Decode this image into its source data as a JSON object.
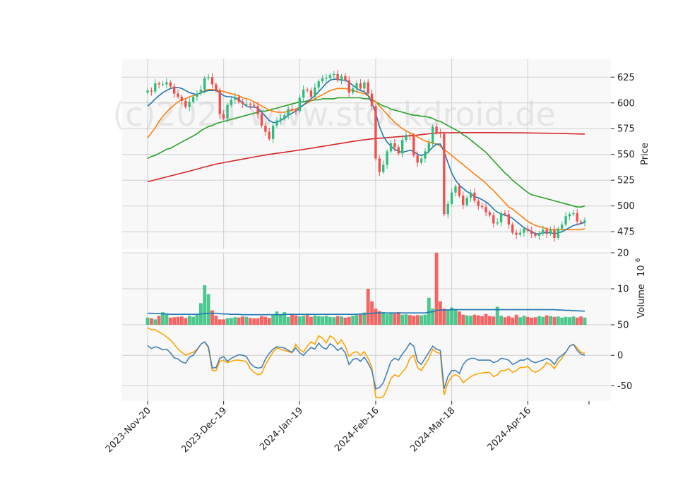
{
  "watermark": "(c)2024 www.stockdroid.de",
  "chart_data": {
    "type": "candlestick",
    "colors": {
      "up": "#2bbf7a",
      "down": "#f54b4b",
      "ma_short": "#1f77b4",
      "ma_mid": "#ff7f0e",
      "ma_long": "#2ca02c",
      "ma_longest": "#d62728",
      "volume_ma": "#1f77b4",
      "osc_fast": "#4682b4",
      "osc_slow": "#ffa500"
    },
    "x_tick_labels": [
      "2023-Nov-20",
      "2023-Dec-19",
      "2024-Jan-19",
      "2024-Feb-16",
      "2024-Mar-18",
      "2024-Apr-16"
    ],
    "x_tick_index": [
      0,
      20,
      40,
      60,
      80,
      100
    ],
    "price_panel": {
      "ylabel": "Price",
      "yticks": [
        475,
        500,
        525,
        550,
        575,
        600,
        625
      ],
      "ylim": [
        458,
        643
      ]
    },
    "volume_panel": {
      "ylabel": "Volume  10^6",
      "ylabel_main": "Volume",
      "ylabel_exp": "6",
      "yticks": [
        10,
        20
      ],
      "ylim": [
        0,
        20
      ]
    },
    "oscillator_panel": {
      "yticks": [
        -50,
        0,
        50
      ],
      "ylim": [
        -75,
        50
      ]
    },
    "close": [
      612,
      611,
      619,
      618,
      618,
      620,
      616,
      609,
      606,
      602,
      596,
      601,
      606,
      609,
      613,
      624,
      625,
      618,
      612,
      589,
      585,
      598,
      603,
      606,
      601,
      599,
      599,
      598,
      597,
      589,
      578,
      572,
      565,
      578,
      583,
      585,
      588,
      594,
      593,
      592,
      605,
      613,
      612,
      606,
      615,
      621,
      624,
      624,
      627,
      628,
      622,
      626,
      622,
      610,
      614,
      619,
      614,
      620,
      609,
      597,
      546,
      533,
      540,
      553,
      561,
      557,
      551,
      564,
      569,
      568,
      549,
      542,
      546,
      553,
      561,
      577,
      571,
      570,
      492,
      502,
      513,
      519,
      510,
      501,
      508,
      513,
      505,
      500,
      499,
      494,
      491,
      483,
      484,
      493,
      492,
      482,
      474,
      472,
      474,
      478,
      476,
      473,
      471,
      473,
      477,
      473,
      477,
      469,
      478,
      482,
      490,
      492,
      493,
      485,
      484,
      486
    ],
    "volume": [
      2.0,
      1.8,
      1.5,
      2.5,
      3.5,
      3.0,
      2.0,
      2.1,
      2.2,
      2.3,
      1.9,
      2.5,
      2.2,
      3.0,
      6.0,
      11.0,
      8.5,
      4.0,
      2.5,
      1.5,
      1.5,
      1.8,
      1.9,
      2.1,
      2.0,
      2.3,
      2.2,
      1.9,
      1.8,
      1.8,
      2.4,
      2.2,
      1.9,
      2.6,
      3.7,
      2.8,
      3.5,
      2.2,
      2.8,
      2.6,
      2.3,
      2.5,
      2.8,
      2.2,
      2.6,
      2.4,
      2.3,
      2.5,
      2.2,
      2.1,
      2.4,
      2.3,
      2.0,
      2.2,
      2.5,
      2.7,
      2.9,
      3.4,
      10.0,
      6.5,
      4.5,
      3.8,
      3.5,
      3.0,
      3.3,
      3.1,
      3.5,
      2.8,
      2.9,
      2.7,
      2.5,
      2.7,
      2.6,
      2.8,
      7.5,
      4.5,
      20.0,
      6.5,
      4.5,
      4.3,
      4.8,
      4.4,
      3.7,
      2.8,
      2.6,
      2.5,
      2.8,
      2.6,
      2.4,
      3.0,
      2.4,
      2.3,
      5.0,
      2.5,
      2.1,
      2.4,
      2.0,
      2.8,
      2.1,
      2.5,
      2.2,
      2.0,
      2.1,
      2.4,
      2.2,
      2.6,
      2.4,
      2.2,
      2.3,
      2.0,
      2.2,
      2.1,
      2.3,
      2.0,
      2.3,
      2.0
    ],
    "volume_ma": [
      3.2,
      3.2,
      3.1,
      3.1,
      3.0,
      3.0,
      2.9,
      2.9,
      2.9,
      2.9,
      2.9,
      2.9,
      2.9,
      2.9,
      3.0,
      3.1,
      3.2,
      3.2,
      3.2,
      3.1,
      3.0,
      3.0,
      2.9,
      2.9,
      2.9,
      2.8,
      2.8,
      2.8,
      2.8,
      2.8,
      2.8,
      2.8,
      2.8,
      2.8,
      2.8,
      2.8,
      2.9,
      2.9,
      2.9,
      2.9,
      2.9,
      2.9,
      2.9,
      2.9,
      2.9,
      2.9,
      2.9,
      2.9,
      2.9,
      2.9,
      2.9,
      2.9,
      2.9,
      2.9,
      2.9,
      2.9,
      3.0,
      3.0,
      3.1,
      3.2,
      3.3,
      3.3,
      3.3,
      3.3,
      3.3,
      3.3,
      3.3,
      3.3,
      3.3,
      3.3,
      3.3,
      3.3,
      3.3,
      3.3,
      3.5,
      3.6,
      4.0,
      4.1,
      4.1,
      4.1,
      4.2,
      4.2,
      4.2,
      4.2,
      4.2,
      4.2,
      4.2,
      4.2,
      4.2,
      4.2,
      4.2,
      4.2,
      4.2,
      4.2,
      4.2,
      4.2,
      4.2,
      4.2,
      4.2,
      4.2,
      4.2,
      4.2,
      4.2,
      4.2,
      4.2,
      4.2,
      4.2,
      4.2,
      4.1,
      4.1,
      4.0,
      4.0,
      3.9,
      3.9,
      3.8,
      3.8
    ],
    "ma_short": [
      597,
      600,
      604,
      607,
      610,
      612,
      614,
      615,
      615,
      614,
      612,
      610,
      609,
      608,
      610,
      611,
      612,
      612,
      612,
      610,
      607,
      606,
      606,
      605,
      603,
      600,
      597,
      596,
      596,
      595,
      591,
      587,
      583,
      581,
      581,
      583,
      585,
      588,
      590,
      592,
      595,
      598,
      601,
      604,
      607,
      611,
      615,
      619,
      622,
      623,
      623,
      622,
      622,
      620,
      617,
      614,
      612,
      611,
      607,
      600,
      590,
      577,
      568,
      562,
      558,
      555,
      553,
      552,
      553,
      554,
      553,
      550,
      549,
      550,
      553,
      557,
      560,
      560,
      553,
      542,
      532,
      525,
      520,
      517,
      514,
      512,
      509,
      508,
      506,
      504,
      501,
      497,
      494,
      492,
      491,
      490,
      488,
      485,
      482,
      479,
      477,
      475,
      473,
      473,
      474,
      474,
      474,
      473,
      474,
      475,
      477,
      479,
      481,
      482,
      483,
      484
    ],
    "ma_mid": [
      566,
      571,
      576,
      582,
      587,
      591,
      595,
      598,
      601,
      603,
      604,
      606,
      607,
      608,
      610,
      612,
      613,
      613,
      612,
      612,
      611,
      610,
      609,
      608,
      607,
      605,
      604,
      603,
      601,
      599,
      597,
      595,
      593,
      592,
      591,
      591,
      591,
      592,
      593,
      594,
      596,
      598,
      600,
      602,
      604,
      606,
      608,
      610,
      612,
      613,
      614,
      614,
      614,
      613,
      612,
      611,
      610,
      609,
      607,
      604,
      601,
      597,
      593,
      589,
      585,
      581,
      578,
      575,
      573,
      571,
      569,
      567,
      565,
      563,
      562,
      561,
      560,
      558,
      555,
      552,
      549,
      546,
      543,
      540,
      537,
      534,
      531,
      528,
      525,
      522,
      518,
      515,
      511,
      507,
      503,
      499,
      497,
      494,
      491,
      488,
      485,
      483,
      481,
      480,
      479,
      478,
      477,
      477,
      477,
      477,
      477,
      477,
      477,
      477,
      477,
      478
    ],
    "ma_long": [
      546,
      548,
      549,
      551,
      553,
      555,
      556,
      558,
      560,
      562,
      564,
      566,
      568,
      570,
      573,
      575,
      577,
      578,
      580,
      581,
      582,
      583,
      584,
      585,
      586,
      587,
      588,
      589,
      590,
      591,
      592,
      592,
      593,
      594,
      595,
      596,
      597,
      598,
      599,
      600,
      601,
      601,
      602,
      602,
      603,
      603,
      604,
      604,
      604,
      604,
      605,
      605,
      605,
      605,
      605,
      605,
      605,
      604,
      604,
      603,
      601,
      599,
      597,
      596,
      594,
      593,
      592,
      591,
      590,
      589,
      588,
      588,
      587,
      587,
      586,
      585,
      583,
      582,
      580,
      578,
      576,
      574,
      572,
      569,
      567,
      564,
      561,
      558,
      555,
      552,
      548,
      544,
      540,
      536,
      532,
      529,
      525,
      522,
      519,
      516,
      513,
      511,
      510,
      509,
      508,
      507,
      506,
      505,
      504,
      503,
      502,
      501,
      500,
      499,
      499,
      500
    ],
    "ma_longest": [
      523.5,
      524.4,
      525.4,
      526.3,
      527.2,
      528.2,
      529.1,
      530.0,
      531.0,
      531.9,
      532.9,
      533.8,
      534.8,
      535.8,
      536.8,
      537.8,
      538.8,
      539.7,
      540.6,
      541.3,
      542.0,
      542.7,
      543.4,
      544.1,
      544.8,
      545.5,
      546.1,
      546.8,
      547.5,
      548.2,
      548.8,
      549.4,
      550.0,
      550.6,
      551.1,
      551.6,
      552.1,
      552.7,
      553.2,
      553.7,
      554.3,
      554.8,
      555.4,
      556.0,
      556.6,
      557.2,
      557.8,
      558.4,
      559.0,
      559.6,
      560.2,
      560.8,
      561.4,
      562.0,
      562.6,
      563.2,
      563.7,
      564.2,
      564.7,
      565.1,
      565.4,
      565.7,
      566.0,
      566.3,
      566.6,
      566.9,
      567.2,
      567.5,
      567.8,
      568.1,
      568.4,
      568.8,
      569.2,
      569.6,
      570.0,
      570.4,
      570.8,
      571.0,
      571.0,
      571.0,
      571.1,
      571.1,
      571.1,
      571.2,
      571.2,
      571.2,
      571.2,
      571.2,
      571.2,
      571.2,
      571.2,
      571.2,
      571.1,
      571.1,
      571.1,
      571.1,
      571.0,
      571.0,
      571.0,
      570.9,
      570.9,
      570.8,
      570.8,
      570.7,
      570.6,
      570.6,
      570.5,
      570.4,
      570.3,
      570.2,
      570.2,
      570.1,
      570.0,
      569.9,
      569.8,
      569.8
    ],
    "osc_fast": [
      16,
      11,
      14,
      12,
      9,
      10,
      4,
      -4,
      -6,
      -11,
      -13,
      -3,
      0,
      9,
      18,
      22,
      14,
      -21,
      -20,
      -5,
      -2,
      -10,
      -5,
      -2,
      1,
      0,
      -2,
      -13,
      -19,
      -21,
      -20,
      -6,
      3,
      10,
      14,
      13,
      12,
      8,
      5,
      12,
      4,
      0,
      7,
      13,
      10,
      20,
      13,
      10,
      19,
      15,
      8,
      12,
      4,
      -15,
      -7,
      -5,
      -10,
      -3,
      -13,
      -25,
      -55,
      -53,
      -45,
      -28,
      -10,
      -5,
      -8,
      2,
      10,
      20,
      15,
      -10,
      -15,
      -5,
      5,
      15,
      10,
      8,
      -55,
      -35,
      -25,
      -25,
      -30,
      -15,
      -8,
      -5,
      -5,
      -8,
      -8,
      -8,
      -8,
      -12,
      -10,
      -5,
      -6,
      -8,
      -15,
      -12,
      -8,
      -8,
      -5,
      -10,
      -12,
      -10,
      -8,
      -5,
      -8,
      -15,
      -5,
      0,
      5,
      15,
      18,
      8,
      2,
      0
    ],
    "osc_slow": [
      45,
      42,
      42,
      38,
      35,
      30,
      25,
      18,
      10,
      5,
      0,
      3,
      5,
      10,
      18,
      22,
      12,
      -25,
      -25,
      -10,
      -8,
      -12,
      -10,
      -8,
      -8,
      -9,
      -10,
      -22,
      -28,
      -32,
      -30,
      -15,
      -5,
      5,
      12,
      10,
      8,
      6,
      4,
      18,
      10,
      5,
      15,
      22,
      18,
      32,
      28,
      20,
      32,
      28,
      18,
      25,
      15,
      -2,
      4,
      6,
      0,
      6,
      -5,
      -20,
      -68,
      -70,
      -68,
      -55,
      -38,
      -32,
      -35,
      -28,
      -20,
      -5,
      0,
      -20,
      -25,
      -15,
      -5,
      10,
      5,
      3,
      -65,
      -45,
      -35,
      -32,
      -35,
      -45,
      -40,
      -35,
      -32,
      -30,
      -29,
      -28,
      -28,
      -35,
      -32,
      -25,
      -25,
      -22,
      -28,
      -25,
      -20,
      -20,
      -18,
      -25,
      -28,
      -25,
      -20,
      -12,
      -15,
      -22,
      -12,
      -5,
      5,
      15,
      18,
      12,
      5,
      3
    ]
  }
}
